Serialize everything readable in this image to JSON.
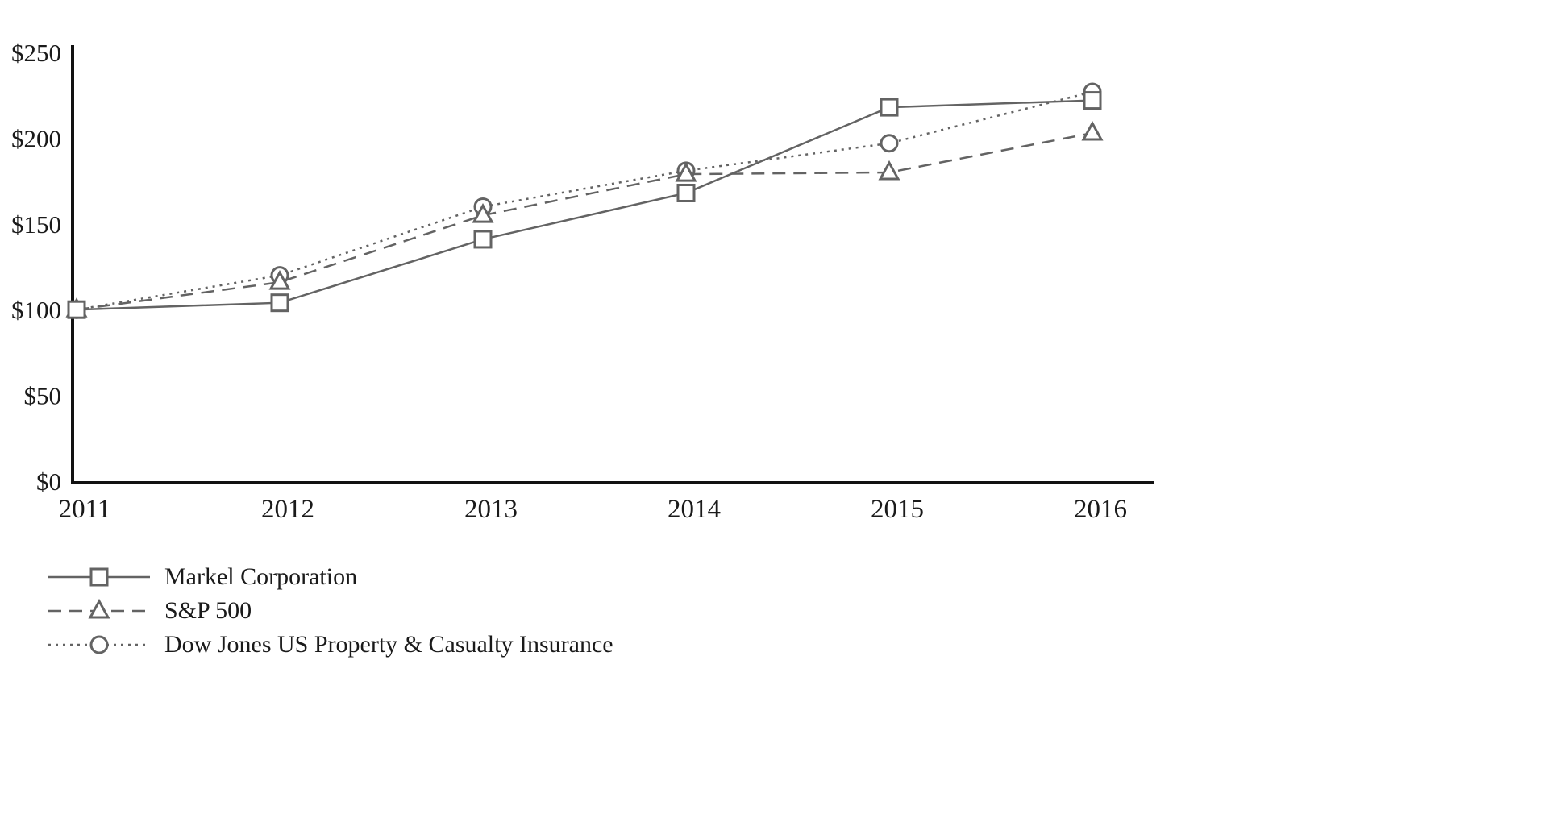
{
  "chart_data": {
    "type": "line",
    "title": "",
    "xlabel": "",
    "ylabel": "",
    "x": [
      "2011",
      "2012",
      "2013",
      "2014",
      "2015",
      "2016"
    ],
    "ylim": [
      0,
      250
    ],
    "yticks": [
      {
        "value": 0,
        "label": "$0"
      },
      {
        "value": 50,
        "label": "$50"
      },
      {
        "value": 100,
        "label": "$100"
      },
      {
        "value": 150,
        "label": "$150"
      },
      {
        "value": 200,
        "label": "$200"
      },
      {
        "value": 250,
        "label": "$250"
      }
    ],
    "grid": false,
    "legend_position": "bottom-left",
    "series_color": "#636363",
    "axis_color": "#111111",
    "series": [
      {
        "name": "Markel Corporation",
        "marker": "square",
        "line": "solid",
        "values": [
          100,
          104,
          141,
          168,
          218,
          222
        ]
      },
      {
        "name": "S&P 500",
        "marker": "triangle",
        "line": "dashed",
        "values": [
          100,
          116,
          155,
          179,
          180,
          203
        ]
      },
      {
        "name": "Dow Jones US Property & Casualty Insurance",
        "marker": "circle",
        "line": "dotted",
        "values": [
          100,
          120,
          160,
          181,
          197,
          227
        ]
      }
    ]
  }
}
